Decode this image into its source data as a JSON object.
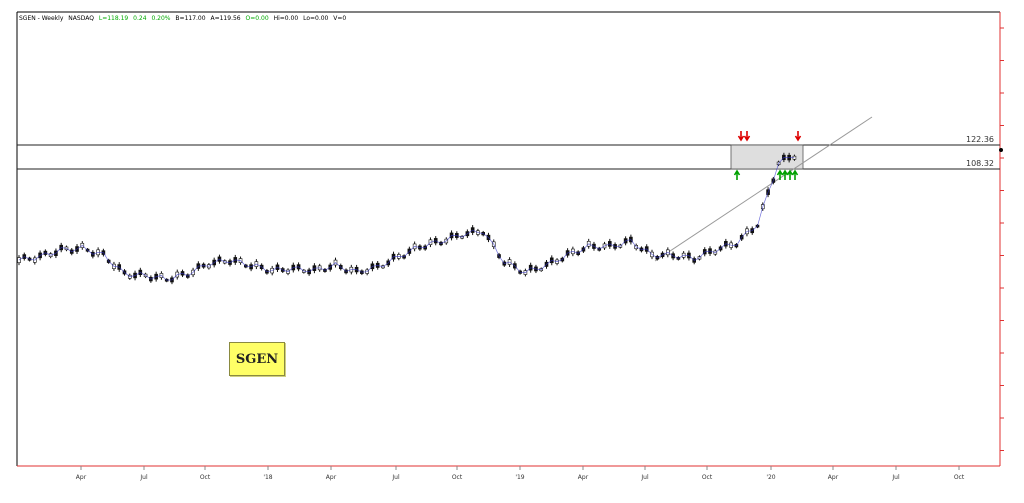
{
  "header": {
    "symbol": "SGEN - Weekly",
    "exchange": "NASDAQ",
    "last": "L=118.19",
    "change": "0.24",
    "change_pct": "0.20%",
    "bid": "B=117.00",
    "ask": "A=119.56",
    "open": "O=0.00",
    "high": "Hi=0.00",
    "low": "Lo=0.00",
    "volume": "V=0"
  },
  "badge": "SGEN",
  "colors": {
    "up": "#00aa00",
    "grid": "#000000",
    "axis_right": "#e03030",
    "trend": "#3333cc",
    "arrow_down": "#dd0000",
    "arrow_up": "#00a000",
    "zone_fill": "#d8d8d8",
    "badge_bg": "#ffff66"
  },
  "chart_data": {
    "type": "line",
    "title": "SGEN - Weekly NASDAQ",
    "x_tick_labels": [
      "Apr",
      "Jul",
      "Oct",
      "'18",
      "Apr",
      "Jul",
      "Oct",
      "'19",
      "Apr",
      "Jul",
      "Oct",
      "'20",
      "Apr",
      "Jul",
      "Oct"
    ],
    "x_range": [
      "2017-01",
      "2020-12"
    ],
    "y_range": [
      20,
      160
    ],
    "resistance_levels": [
      {
        "label": "122.36",
        "value": 122.36
      },
      {
        "label": "108.32",
        "value": 108.32
      }
    ],
    "series": [
      {
        "x": [
          "2017-01",
          "2017-02",
          "2017-03",
          "2017-04",
          "2017-05",
          "2017-06",
          "2017-07",
          "2017-08",
          "2017-09",
          "2017-10",
          "2017-11",
          "2017-12",
          "2018-01",
          "2018-02",
          "2018-03",
          "2018-04",
          "2018-05",
          "2018-06",
          "2018-07",
          "2018-08",
          "2018-09",
          "2018-10",
          "2018-11",
          "2018-12",
          "2019-01",
          "2019-02",
          "2019-03",
          "2019-04",
          "2019-05",
          "2019-06",
          "2019-07",
          "2019-08",
          "2019-09",
          "2019-10",
          "2019-11",
          "2019-12",
          "2020-01",
          "2020-02"
        ],
        "values": [
          55,
          57,
          61,
          62,
          58,
          47,
          46,
          44,
          47,
          53,
          55,
          52,
          49,
          50,
          49,
          52,
          48,
          51,
          57,
          63,
          66,
          70,
          72,
          54,
          48,
          52,
          58,
          63,
          63,
          66,
          58,
          58,
          56,
          61,
          65,
          76,
          112,
          118
        ]
      }
    ],
    "markers": {
      "down_arrows": [
        "2019-11",
        "2019-11",
        "2020-02"
      ],
      "up_arrows": [
        "2019-10",
        "2020-01",
        "2020-01",
        "2020-01",
        "2020-01"
      ]
    },
    "grid": false,
    "legend": "none"
  }
}
